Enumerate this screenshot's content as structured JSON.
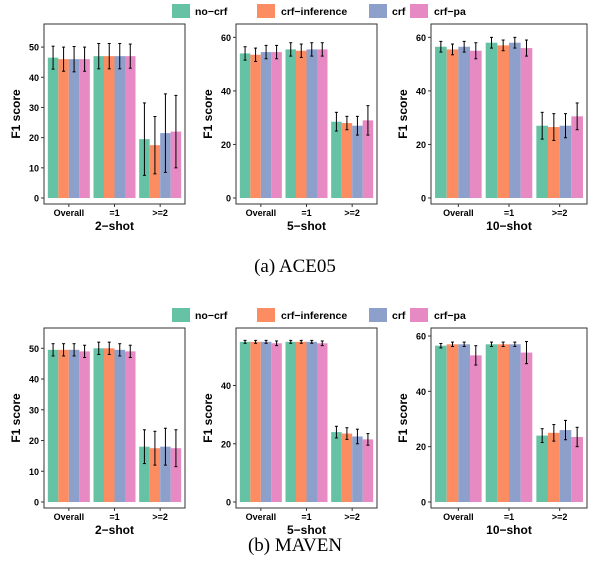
{
  "colors": {
    "no-crf": "#66c2a5",
    "crf-inference": "#fc8d62",
    "crf": "#8da0cb",
    "crf-pa": "#e78ac3"
  },
  "captions": {
    "a": "(a)  ACE05",
    "b": "(b)  MAVEN"
  },
  "legend": [
    "no−crf",
    "crf−inference",
    "crf",
    "crf−pa"
  ],
  "chart_data": [
    {
      "type": "bar",
      "group": "ACE05",
      "title": "2−shot",
      "ylabel": "F1 score",
      "categories": [
        "Overall",
        "=1",
        ">=2"
      ],
      "ylim": [
        0,
        55
      ],
      "yticks": [
        0,
        10,
        20,
        30,
        40,
        50
      ],
      "series": [
        {
          "name": "no−crf",
          "values": [
            46.5,
            47,
            19.5
          ],
          "err": [
            3.8,
            4.2,
            12
          ]
        },
        {
          "name": "crf−inference",
          "values": [
            46,
            47,
            17.5
          ],
          "err": [
            4,
            4.2,
            9.5
          ]
        },
        {
          "name": "crf",
          "values": [
            46,
            47,
            21.5
          ],
          "err": [
            4.2,
            4.2,
            13
          ]
        },
        {
          "name": "crf−pa",
          "values": [
            46,
            47,
            22
          ],
          "err": [
            4,
            4,
            12
          ]
        }
      ]
    },
    {
      "type": "bar",
      "group": "ACE05",
      "title": "5−shot",
      "ylabel": "F1 score",
      "categories": [
        "Overall",
        "=1",
        ">=2"
      ],
      "ylim": [
        0,
        62
      ],
      "yticks": [
        0,
        20,
        40,
        60
      ],
      "series": [
        {
          "name": "no−crf",
          "values": [
            54,
            55.5,
            28.5
          ],
          "err": [
            2.5,
            2.5,
            3.5
          ]
        },
        {
          "name": "crf−inference",
          "values": [
            53.5,
            55,
            28
          ],
          "err": [
            2.5,
            2.5,
            2.5
          ]
        },
        {
          "name": "crf",
          "values": [
            54.5,
            55.5,
            27
          ],
          "err": [
            2.5,
            2.5,
            3.5
          ]
        },
        {
          "name": "crf−pa",
          "values": [
            54.5,
            55.5,
            29
          ],
          "err": [
            2.5,
            2.5,
            5.5
          ]
        }
      ]
    },
    {
      "type": "bar",
      "group": "ACE05",
      "title": "10−shot",
      "ylabel": "F1 score",
      "categories": [
        "Overall",
        "=1",
        ">=2"
      ],
      "ylim": [
        0,
        62
      ],
      "yticks": [
        0,
        20,
        40,
        60
      ],
      "series": [
        {
          "name": "no−crf",
          "values": [
            56.5,
            58,
            27
          ],
          "err": [
            2,
            2,
            5
          ]
        },
        {
          "name": "crf−inference",
          "values": [
            55.5,
            57,
            26.5
          ],
          "err": [
            2,
            2,
            5
          ]
        },
        {
          "name": "crf",
          "values": [
            56.5,
            58,
            27
          ],
          "err": [
            2,
            2,
            4.5
          ]
        },
        {
          "name": "crf−pa",
          "values": [
            55,
            56,
            30.5
          ],
          "err": [
            3,
            3,
            5
          ]
        }
      ]
    },
    {
      "type": "bar",
      "group": "MAVEN",
      "title": "2−shot",
      "ylabel": "F1 score",
      "categories": [
        "Overall",
        "=1",
        ">=2"
      ],
      "ylim": [
        0,
        54
      ],
      "yticks": [
        0,
        10,
        20,
        30,
        40,
        50
      ],
      "series": [
        {
          "name": "no−crf",
          "values": [
            49.5,
            50,
            18
          ],
          "err": [
            2,
            2,
            5.5
          ]
        },
        {
          "name": "crf−inference",
          "values": [
            49.5,
            50,
            17.5
          ],
          "err": [
            2,
            2,
            5.5
          ]
        },
        {
          "name": "crf",
          "values": [
            49.5,
            49.5,
            18
          ],
          "err": [
            2,
            2,
            6
          ]
        },
        {
          "name": "crf−pa",
          "values": [
            49,
            49,
            17.5
          ],
          "err": [
            2,
            2,
            6
          ]
        }
      ]
    },
    {
      "type": "bar",
      "group": "MAVEN",
      "title": "5−shot",
      "ylabel": "F1 score",
      "categories": [
        "Overall",
        "=1",
        ">=2"
      ],
      "ylim": [
        0,
        57
      ],
      "yticks": [
        0,
        20,
        40
      ],
      "series": [
        {
          "name": "no−crf",
          "values": [
            55,
            55,
            24
          ],
          "err": [
            0.5,
            0.5,
            2
          ]
        },
        {
          "name": "crf−inference",
          "values": [
            55,
            55,
            23.5
          ],
          "err": [
            0.5,
            0.5,
            2
          ]
        },
        {
          "name": "crf",
          "values": [
            55,
            55,
            22.5
          ],
          "err": [
            0.5,
            0.5,
            2.5
          ]
        },
        {
          "name": "crf−pa",
          "values": [
            54.5,
            54.5,
            21.5
          ],
          "err": [
            0.8,
            0.8,
            2
          ]
        }
      ]
    },
    {
      "type": "bar",
      "group": "MAVEN",
      "title": "10−shot",
      "ylabel": "F1 score",
      "categories": [
        "Overall",
        "=1",
        ">=2"
      ],
      "ylim": [
        0,
        60
      ],
      "yticks": [
        0,
        20,
        40,
        60
      ],
      "series": [
        {
          "name": "no−crf",
          "values": [
            56.5,
            57,
            24
          ],
          "err": [
            0.8,
            0.8,
            2.5
          ]
        },
        {
          "name": "crf−inference",
          "values": [
            57,
            57,
            25
          ],
          "err": [
            0.8,
            0.8,
            3
          ]
        },
        {
          "name": "crf",
          "values": [
            57,
            57,
            26
          ],
          "err": [
            0.8,
            0.8,
            3.5
          ]
        },
        {
          "name": "crf−pa",
          "values": [
            53,
            54,
            23.5
          ],
          "err": [
            3.5,
            4,
            3.5
          ]
        }
      ]
    }
  ]
}
